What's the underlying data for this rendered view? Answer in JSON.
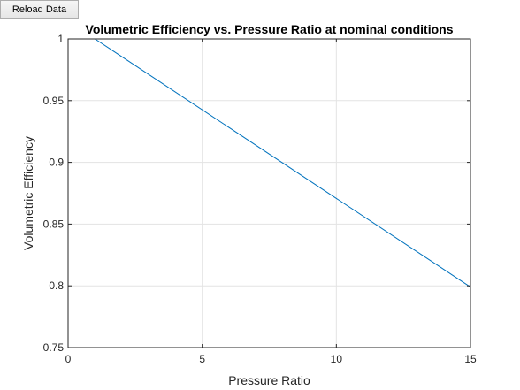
{
  "toolbar": {
    "reload_label": "Reload Data"
  },
  "chart_data": {
    "type": "line",
    "title": "Volumetric Efficiency vs. Pressure Ratio at nominal conditions",
    "xlabel": "Pressure Ratio",
    "ylabel": "Volumetric Efficiency",
    "xlim": [
      0,
      15
    ],
    "ylim": [
      0.75,
      1
    ],
    "xticks": [
      0,
      5,
      10,
      15
    ],
    "xtick_labels": [
      "0",
      "5",
      "10",
      "15"
    ],
    "yticks": [
      0.75,
      0.8,
      0.85,
      0.9,
      0.95,
      1
    ],
    "ytick_labels": [
      "0.75",
      "0.8",
      "0.85",
      "0.9",
      "0.95",
      "1"
    ],
    "grid": true,
    "series": [
      {
        "color": "#0072bd",
        "x": [
          1,
          15
        ],
        "y": [
          1.0,
          0.799
        ]
      }
    ]
  }
}
